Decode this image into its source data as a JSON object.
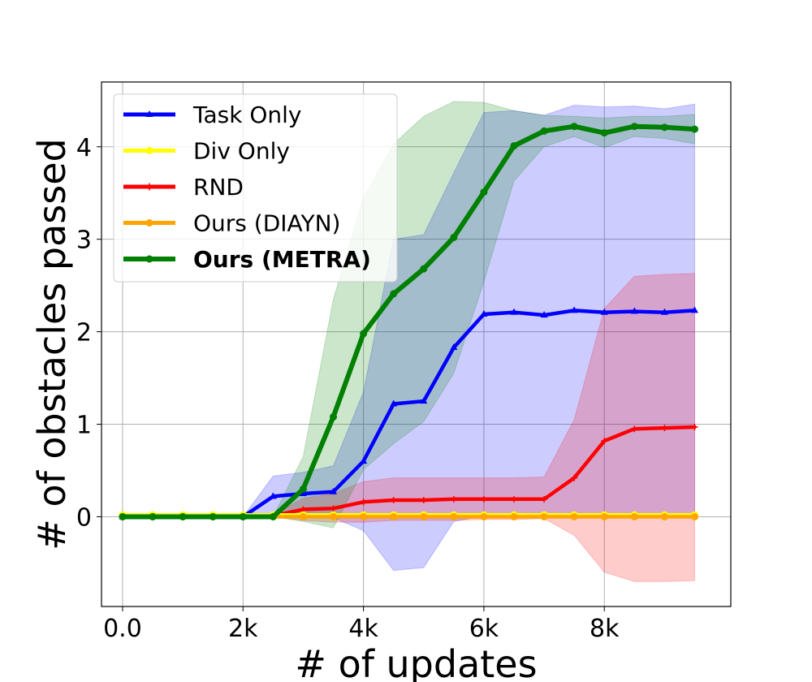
{
  "chart_data": {
    "type": "line",
    "xlabel": "# of updates",
    "ylabel": "# of obstacles passed",
    "xlim": [
      -350,
      10100
    ],
    "ylim": [
      -0.97,
      4.7
    ],
    "x_ticks": [
      {
        "value": 0,
        "label": "0.0"
      },
      {
        "value": 2000,
        "label": "2k"
      },
      {
        "value": 4000,
        "label": "4k"
      },
      {
        "value": 6000,
        "label": "6k"
      },
      {
        "value": 8000,
        "label": "8k"
      }
    ],
    "y_ticks": [
      {
        "value": 0,
        "label": "0"
      },
      {
        "value": 1,
        "label": "1"
      },
      {
        "value": 2,
        "label": "2"
      },
      {
        "value": 3,
        "label": "3"
      },
      {
        "value": 4,
        "label": "4"
      }
    ],
    "grid": true,
    "legend_position": "top-left",
    "x": [
      0,
      500,
      1000,
      1500,
      2000,
      2500,
      3000,
      3500,
      4000,
      4500,
      5000,
      5500,
      6000,
      6500,
      7000,
      7500,
      8000,
      8500,
      9000,
      9500
    ],
    "series": [
      {
        "name": "Task Only",
        "color": "#0000ff",
        "marker": "triangle",
        "bold": false,
        "values": [
          0,
          0,
          0,
          0,
          0,
          0.22,
          0.25,
          0.27,
          0.6,
          1.22,
          1.25,
          1.83,
          2.19,
          2.21,
          2.18,
          2.23,
          2.21,
          2.22,
          2.21,
          2.23
        ],
        "upper": [
          0,
          0,
          0,
          0,
          0,
          0.44,
          0.48,
          0.55,
          1.35,
          3.0,
          3.05,
          3.72,
          4.37,
          4.39,
          4.34,
          4.45,
          4.43,
          4.44,
          4.41,
          4.46
        ],
        "lower": [
          0,
          0,
          0,
          0,
          0,
          0,
          0.02,
          -0.01,
          -0.15,
          -0.58,
          -0.55,
          -0.05,
          0.01,
          0.02,
          0.02,
          0.01,
          0,
          0.01,
          0.01,
          0.01
        ]
      },
      {
        "name": "Div Only",
        "color": "#ffff00",
        "marker": "circle",
        "bold": false,
        "values": [
          0.02,
          0.02,
          0.02,
          0.02,
          0.02,
          0.02,
          0.02,
          0.02,
          0.02,
          0.02,
          0.02,
          0.02,
          0.02,
          0.02,
          0.02,
          0.02,
          0.02,
          0.02,
          0.02,
          0.02
        ]
      },
      {
        "name": "RND",
        "color": "#ff0000",
        "marker": "plus",
        "bold": false,
        "values": [
          0,
          0,
          0,
          0,
          0,
          0.01,
          0.08,
          0.09,
          0.16,
          0.18,
          0.18,
          0.19,
          0.19,
          0.19,
          0.19,
          0.42,
          0.82,
          0.95,
          0.96,
          0.97
        ],
        "upper": [
          0,
          0,
          0,
          0,
          0,
          0.02,
          0.2,
          0.25,
          0.38,
          0.42,
          0.42,
          0.42,
          0.42,
          0.42,
          0.43,
          1.05,
          2.25,
          2.6,
          2.62,
          2.63
        ],
        "lower": [
          0,
          0,
          0,
          0,
          0,
          0,
          -0.04,
          -0.06,
          -0.06,
          -0.04,
          -0.04,
          -0.04,
          -0.03,
          -0.03,
          -0.02,
          -0.2,
          -0.6,
          -0.7,
          -0.7,
          -0.69
        ]
      },
      {
        "name": "Ours (DIAYN)",
        "color": "#ffa500",
        "marker": "circle",
        "bold": false,
        "values": [
          0,
          0,
          0,
          0,
          0,
          0,
          0,
          0,
          0,
          0,
          0,
          0,
          0,
          0,
          0,
          0,
          0,
          0,
          0,
          0
        ]
      },
      {
        "name": "Ours (METRA)",
        "color": "#008000",
        "marker": "circle",
        "bold": true,
        "values": [
          0,
          0,
          0,
          0,
          0,
          0,
          0.3,
          1.08,
          1.98,
          2.41,
          2.68,
          3.02,
          3.51,
          4.01,
          4.17,
          4.22,
          4.15,
          4.22,
          4.21,
          4.19
        ],
        "upper": [
          0,
          0,
          0,
          0,
          0,
          0,
          0.65,
          2.35,
          3.45,
          4.03,
          4.33,
          4.49,
          4.48,
          4.39,
          4.34,
          4.33,
          4.31,
          4.33,
          4.33,
          4.35
        ],
        "lower": [
          0,
          0,
          0,
          0,
          0,
          0,
          -0.05,
          -0.12,
          0.51,
          0.79,
          1.03,
          1.55,
          2.54,
          3.63,
          4.0,
          4.11,
          3.99,
          4.11,
          4.09,
          4.03
        ]
      }
    ]
  }
}
